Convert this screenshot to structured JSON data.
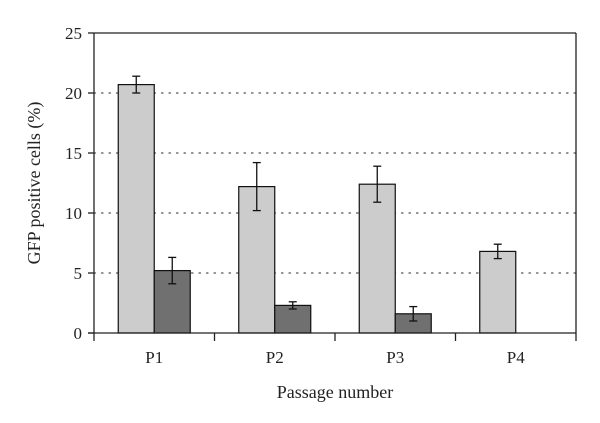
{
  "chart_data": {
    "type": "bar",
    "categories": [
      "P1",
      "P2",
      "P3",
      "P4"
    ],
    "series": [
      {
        "values": [
          20.7,
          12.2,
          12.4,
          6.8
        ],
        "errors": [
          0.7,
          2.0,
          1.5,
          0.6
        ],
        "color": "#cccccc"
      },
      {
        "values": [
          5.2,
          2.3,
          1.6,
          null
        ],
        "errors": [
          1.1,
          0.3,
          0.6,
          null
        ],
        "color": "#707070"
      }
    ],
    "xlabel": "Passage number",
    "ylabel": "GFP positive cells (%)",
    "ylim": [
      0,
      25
    ],
    "yticks": [
      0,
      5,
      10,
      15,
      20,
      25
    ],
    "grid": "dotted horizontal",
    "legend": "none"
  }
}
